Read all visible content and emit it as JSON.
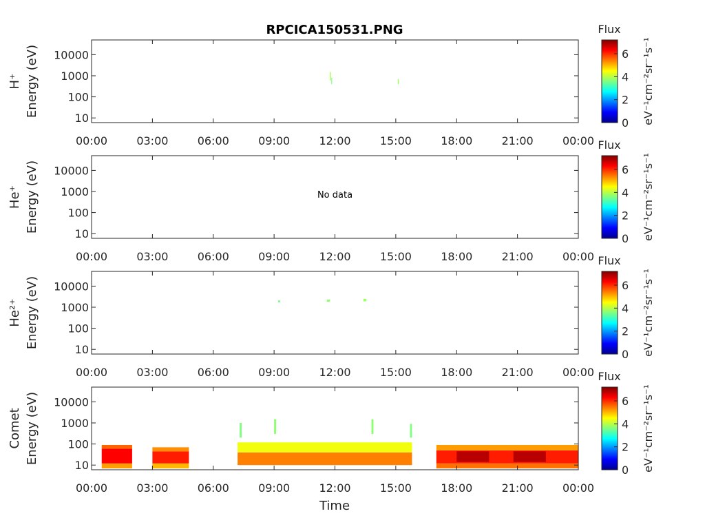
{
  "chart_data": {
    "type": "heatmap",
    "title": "RPCICA150531.PNG",
    "xlabel": "Time",
    "x_ticks": [
      "00:00",
      "03:00",
      "06:00",
      "09:00",
      "12:00",
      "15:00",
      "18:00",
      "21:00",
      "00:00"
    ],
    "xlim_hours": [
      0,
      24
    ],
    "y_scale": "log",
    "ylim_eV": [
      6,
      50000
    ],
    "y_ticks": [
      {
        "value": 10,
        "label": "10"
      },
      {
        "value": 100,
        "label": "100"
      },
      {
        "value": 1000,
        "label": "1000"
      },
      {
        "value": 10000,
        "label": "10000"
      }
    ],
    "colorbar": {
      "title": "Flux",
      "label": "eV⁻¹cm⁻²sr⁻¹s⁻¹",
      "range": [
        0,
        7.2
      ],
      "ticks": [
        {
          "value": 0,
          "label": "0"
        },
        {
          "value": 2,
          "label": "2"
        },
        {
          "value": 4,
          "label": "4"
        },
        {
          "value": 6,
          "label": "6"
        }
      ],
      "colormap": "jet"
    },
    "panels": [
      {
        "species": "H⁺",
        "ylabel": "Energy (eV)",
        "no_data": "",
        "blocks": [
          {
            "t0": 11.75,
            "t1": 11.8,
            "e0": 600,
            "e1": 1500,
            "flux": 3.9
          },
          {
            "t0": 11.82,
            "t1": 11.86,
            "e0": 400,
            "e1": 800,
            "flux": 3.6
          },
          {
            "t0": 15.1,
            "t1": 15.15,
            "e0": 400,
            "e1": 700,
            "flux": 3.8
          }
        ]
      },
      {
        "species": "He⁺",
        "ylabel": "Energy (eV)",
        "no_data": "No data",
        "blocks": []
      },
      {
        "species": "He²⁺",
        "ylabel": "Energy (eV)",
        "no_data": "",
        "blocks": [
          {
            "t0": 9.2,
            "t1": 9.3,
            "e0": 1700,
            "e1": 2100,
            "flux": 3.6
          },
          {
            "t0": 11.6,
            "t1": 11.75,
            "e0": 1800,
            "e1": 2300,
            "flux": 3.7
          },
          {
            "t0": 13.4,
            "t1": 13.55,
            "e0": 1900,
            "e1": 2500,
            "flux": 3.8
          }
        ]
      },
      {
        "species": "Comet",
        "ylabel": "Energy (eV)",
        "no_data": "",
        "blocks": [
          {
            "t0": 0.5,
            "t1": 2.0,
            "e0": 7,
            "e1": 12,
            "flux": 5.2
          },
          {
            "t0": 0.5,
            "t1": 2.0,
            "e0": 12,
            "e1": 60,
            "flux": 6.3
          },
          {
            "t0": 0.5,
            "t1": 2.0,
            "e0": 60,
            "e1": 90,
            "flux": 5.6
          },
          {
            "t0": 3.0,
            "t1": 4.8,
            "e0": 7,
            "e1": 12,
            "flux": 5.0
          },
          {
            "t0": 3.0,
            "t1": 4.8,
            "e0": 12,
            "e1": 45,
            "flux": 6.1
          },
          {
            "t0": 3.0,
            "t1": 4.8,
            "e0": 45,
            "e1": 70,
            "flux": 5.3
          },
          {
            "t0": 7.2,
            "t1": 15.8,
            "e0": 10,
            "e1": 40,
            "flux": 5.4
          },
          {
            "t0": 7.2,
            "t1": 15.8,
            "e0": 40,
            "e1": 120,
            "flux": 4.4
          },
          {
            "t0": 7.3,
            "t1": 7.4,
            "e0": 200,
            "e1": 1000,
            "flux": 3.6
          },
          {
            "t0": 9.0,
            "t1": 9.1,
            "e0": 300,
            "e1": 1500,
            "flux": 3.7
          },
          {
            "t0": 13.8,
            "t1": 13.9,
            "e0": 300,
            "e1": 1500,
            "flux": 3.7
          },
          {
            "t0": 15.7,
            "t1": 15.8,
            "e0": 200,
            "e1": 900,
            "flux": 3.6
          },
          {
            "t0": 17.0,
            "t1": 24.0,
            "e0": 7,
            "e1": 12,
            "flux": 5.5
          },
          {
            "t0": 17.0,
            "t1": 24.0,
            "e0": 12,
            "e1": 50,
            "flux": 6.1
          },
          {
            "t0": 17.0,
            "t1": 24.0,
            "e0": 50,
            "e1": 90,
            "flux": 5.2
          },
          {
            "t0": 18.0,
            "t1": 19.6,
            "e0": 14,
            "e1": 45,
            "flux": 6.8
          },
          {
            "t0": 20.8,
            "t1": 22.4,
            "e0": 14,
            "e1": 45,
            "flux": 6.8
          }
        ]
      }
    ]
  }
}
